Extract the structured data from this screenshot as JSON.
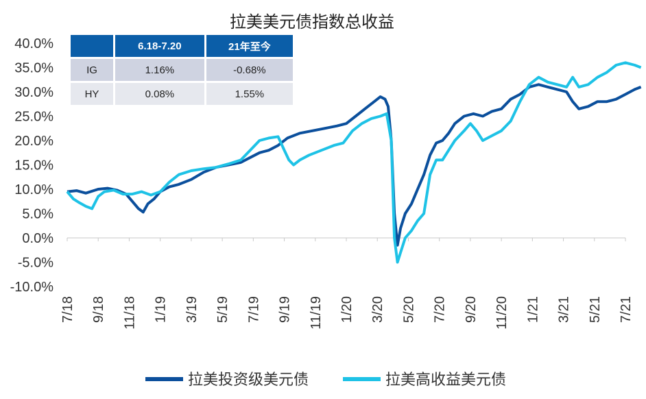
{
  "chart_data": {
    "type": "line",
    "title": "拉美美元债指数总收益",
    "xlabel": "",
    "ylabel": "",
    "ylim": [
      -10,
      40
    ],
    "y_ticks": [
      "40.0%",
      "35.0%",
      "30.0%",
      "25.0%",
      "20.0%",
      "15.0%",
      "10.0%",
      "5.0%",
      "0.0%",
      "-5.0%",
      "-10.0%"
    ],
    "x_ticks": [
      "7/18",
      "9/18",
      "11/18",
      "1/19",
      "3/19",
      "5/19",
      "7/19",
      "9/19",
      "11/19",
      "1/20",
      "3/20",
      "5/20",
      "7/20",
      "9/20",
      "11/20",
      "1/21",
      "3/21",
      "5/21",
      "7/21"
    ],
    "legend_position": "bottom",
    "grid": false,
    "series": [
      {
        "name": "拉美投资级美元债",
        "color": "#0b4f9c",
        "points": [
          [
            0,
            9.5
          ],
          [
            0.3,
            9.7
          ],
          [
            0.6,
            9.2
          ],
          [
            1.0,
            10.0
          ],
          [
            1.3,
            10.2
          ],
          [
            1.6,
            9.8
          ],
          [
            1.9,
            9.0
          ],
          [
            2.1,
            7.5
          ],
          [
            2.3,
            6.0
          ],
          [
            2.45,
            5.3
          ],
          [
            2.6,
            7.0
          ],
          [
            2.8,
            8.0
          ],
          [
            3.0,
            9.5
          ],
          [
            3.3,
            10.5
          ],
          [
            3.6,
            11.0
          ],
          [
            4.0,
            12.0
          ],
          [
            4.4,
            13.5
          ],
          [
            4.8,
            14.5
          ],
          [
            5.2,
            15.0
          ],
          [
            5.6,
            15.5
          ],
          [
            5.9,
            16.5
          ],
          [
            6.2,
            17.5
          ],
          [
            6.5,
            18.0
          ],
          [
            6.8,
            19.0
          ],
          [
            7.1,
            20.5
          ],
          [
            7.5,
            21.5
          ],
          [
            7.9,
            22.0
          ],
          [
            8.3,
            22.5
          ],
          [
            8.7,
            23.0
          ],
          [
            9.0,
            23.5
          ],
          [
            9.3,
            25.0
          ],
          [
            9.6,
            26.5
          ],
          [
            9.9,
            28.0
          ],
          [
            10.1,
            29.0
          ],
          [
            10.25,
            28.5
          ],
          [
            10.35,
            27.0
          ],
          [
            10.45,
            20.0
          ],
          [
            10.55,
            5.0
          ],
          [
            10.65,
            -1.5
          ],
          [
            10.75,
            2.0
          ],
          [
            10.9,
            5.0
          ],
          [
            11.1,
            7.0
          ],
          [
            11.3,
            10.0
          ],
          [
            11.5,
            13.0
          ],
          [
            11.7,
            17.0
          ],
          [
            11.9,
            19.5
          ],
          [
            12.1,
            20.0
          ],
          [
            12.3,
            21.5
          ],
          [
            12.5,
            23.5
          ],
          [
            12.8,
            25.0
          ],
          [
            13.1,
            25.5
          ],
          [
            13.4,
            25.0
          ],
          [
            13.7,
            26.0
          ],
          [
            14.0,
            26.5
          ],
          [
            14.3,
            28.5
          ],
          [
            14.6,
            29.5
          ],
          [
            14.9,
            31.0
          ],
          [
            15.2,
            31.5
          ],
          [
            15.5,
            31.0
          ],
          [
            15.8,
            30.5
          ],
          [
            16.1,
            30.0
          ],
          [
            16.3,
            28.0
          ],
          [
            16.5,
            26.5
          ],
          [
            16.8,
            27.0
          ],
          [
            17.1,
            28.0
          ],
          [
            17.4,
            28.0
          ],
          [
            17.7,
            28.5
          ],
          [
            18.0,
            29.5
          ],
          [
            18.3,
            30.5
          ],
          [
            18.5,
            31.0
          ]
        ]
      },
      {
        "name": "拉美高收益美元债",
        "color": "#1ec2e6",
        "points": [
          [
            0,
            9.5
          ],
          [
            0.2,
            8.0
          ],
          [
            0.4,
            7.2
          ],
          [
            0.6,
            6.5
          ],
          [
            0.8,
            6.0
          ],
          [
            1.0,
            8.5
          ],
          [
            1.2,
            9.5
          ],
          [
            1.5,
            9.8
          ],
          [
            1.8,
            9.0
          ],
          [
            2.1,
            9.0
          ],
          [
            2.4,
            9.5
          ],
          [
            2.7,
            8.8
          ],
          [
            3.0,
            9.5
          ],
          [
            3.3,
            11.5
          ],
          [
            3.6,
            13.0
          ],
          [
            4.0,
            13.8
          ],
          [
            4.4,
            14.2
          ],
          [
            4.8,
            14.5
          ],
          [
            5.2,
            15.2
          ],
          [
            5.6,
            16.0
          ],
          [
            5.9,
            18.0
          ],
          [
            6.2,
            20.0
          ],
          [
            6.5,
            20.5
          ],
          [
            6.8,
            20.8
          ],
          [
            7.0,
            18.0
          ],
          [
            7.15,
            16.0
          ],
          [
            7.3,
            15.0
          ],
          [
            7.5,
            16.0
          ],
          [
            7.8,
            17.0
          ],
          [
            8.2,
            18.0
          ],
          [
            8.6,
            19.0
          ],
          [
            8.9,
            19.5
          ],
          [
            9.2,
            22.0
          ],
          [
            9.5,
            23.5
          ],
          [
            9.8,
            24.5
          ],
          [
            10.1,
            25.0
          ],
          [
            10.3,
            25.5
          ],
          [
            10.45,
            20.0
          ],
          [
            10.55,
            0.0
          ],
          [
            10.65,
            -5.0
          ],
          [
            10.75,
            -3.0
          ],
          [
            10.9,
            0.0
          ],
          [
            11.1,
            1.5
          ],
          [
            11.3,
            3.5
          ],
          [
            11.5,
            5.0
          ],
          [
            11.7,
            13.0
          ],
          [
            11.9,
            16.0
          ],
          [
            12.1,
            16.0
          ],
          [
            12.3,
            18.0
          ],
          [
            12.5,
            20.0
          ],
          [
            12.8,
            22.0
          ],
          [
            13.0,
            23.5
          ],
          [
            13.2,
            22.0
          ],
          [
            13.4,
            20.0
          ],
          [
            13.7,
            21.0
          ],
          [
            14.0,
            22.0
          ],
          [
            14.3,
            24.0
          ],
          [
            14.6,
            28.0
          ],
          [
            14.9,
            31.5
          ],
          [
            15.2,
            33.0
          ],
          [
            15.5,
            32.0
          ],
          [
            15.8,
            31.5
          ],
          [
            16.1,
            31.0
          ],
          [
            16.3,
            33.0
          ],
          [
            16.5,
            31.0
          ],
          [
            16.8,
            31.5
          ],
          [
            17.1,
            33.0
          ],
          [
            17.4,
            34.0
          ],
          [
            17.7,
            35.5
          ],
          [
            18.0,
            36.0
          ],
          [
            18.3,
            35.5
          ],
          [
            18.5,
            35.0
          ]
        ]
      }
    ],
    "table": {
      "headers": [
        "",
        "6.18-7.20",
        "21年至今"
      ],
      "rows": [
        [
          "IG",
          "1.16%",
          "-0.68%"
        ],
        [
          "HY",
          "0.08%",
          "1.55%"
        ]
      ]
    }
  }
}
